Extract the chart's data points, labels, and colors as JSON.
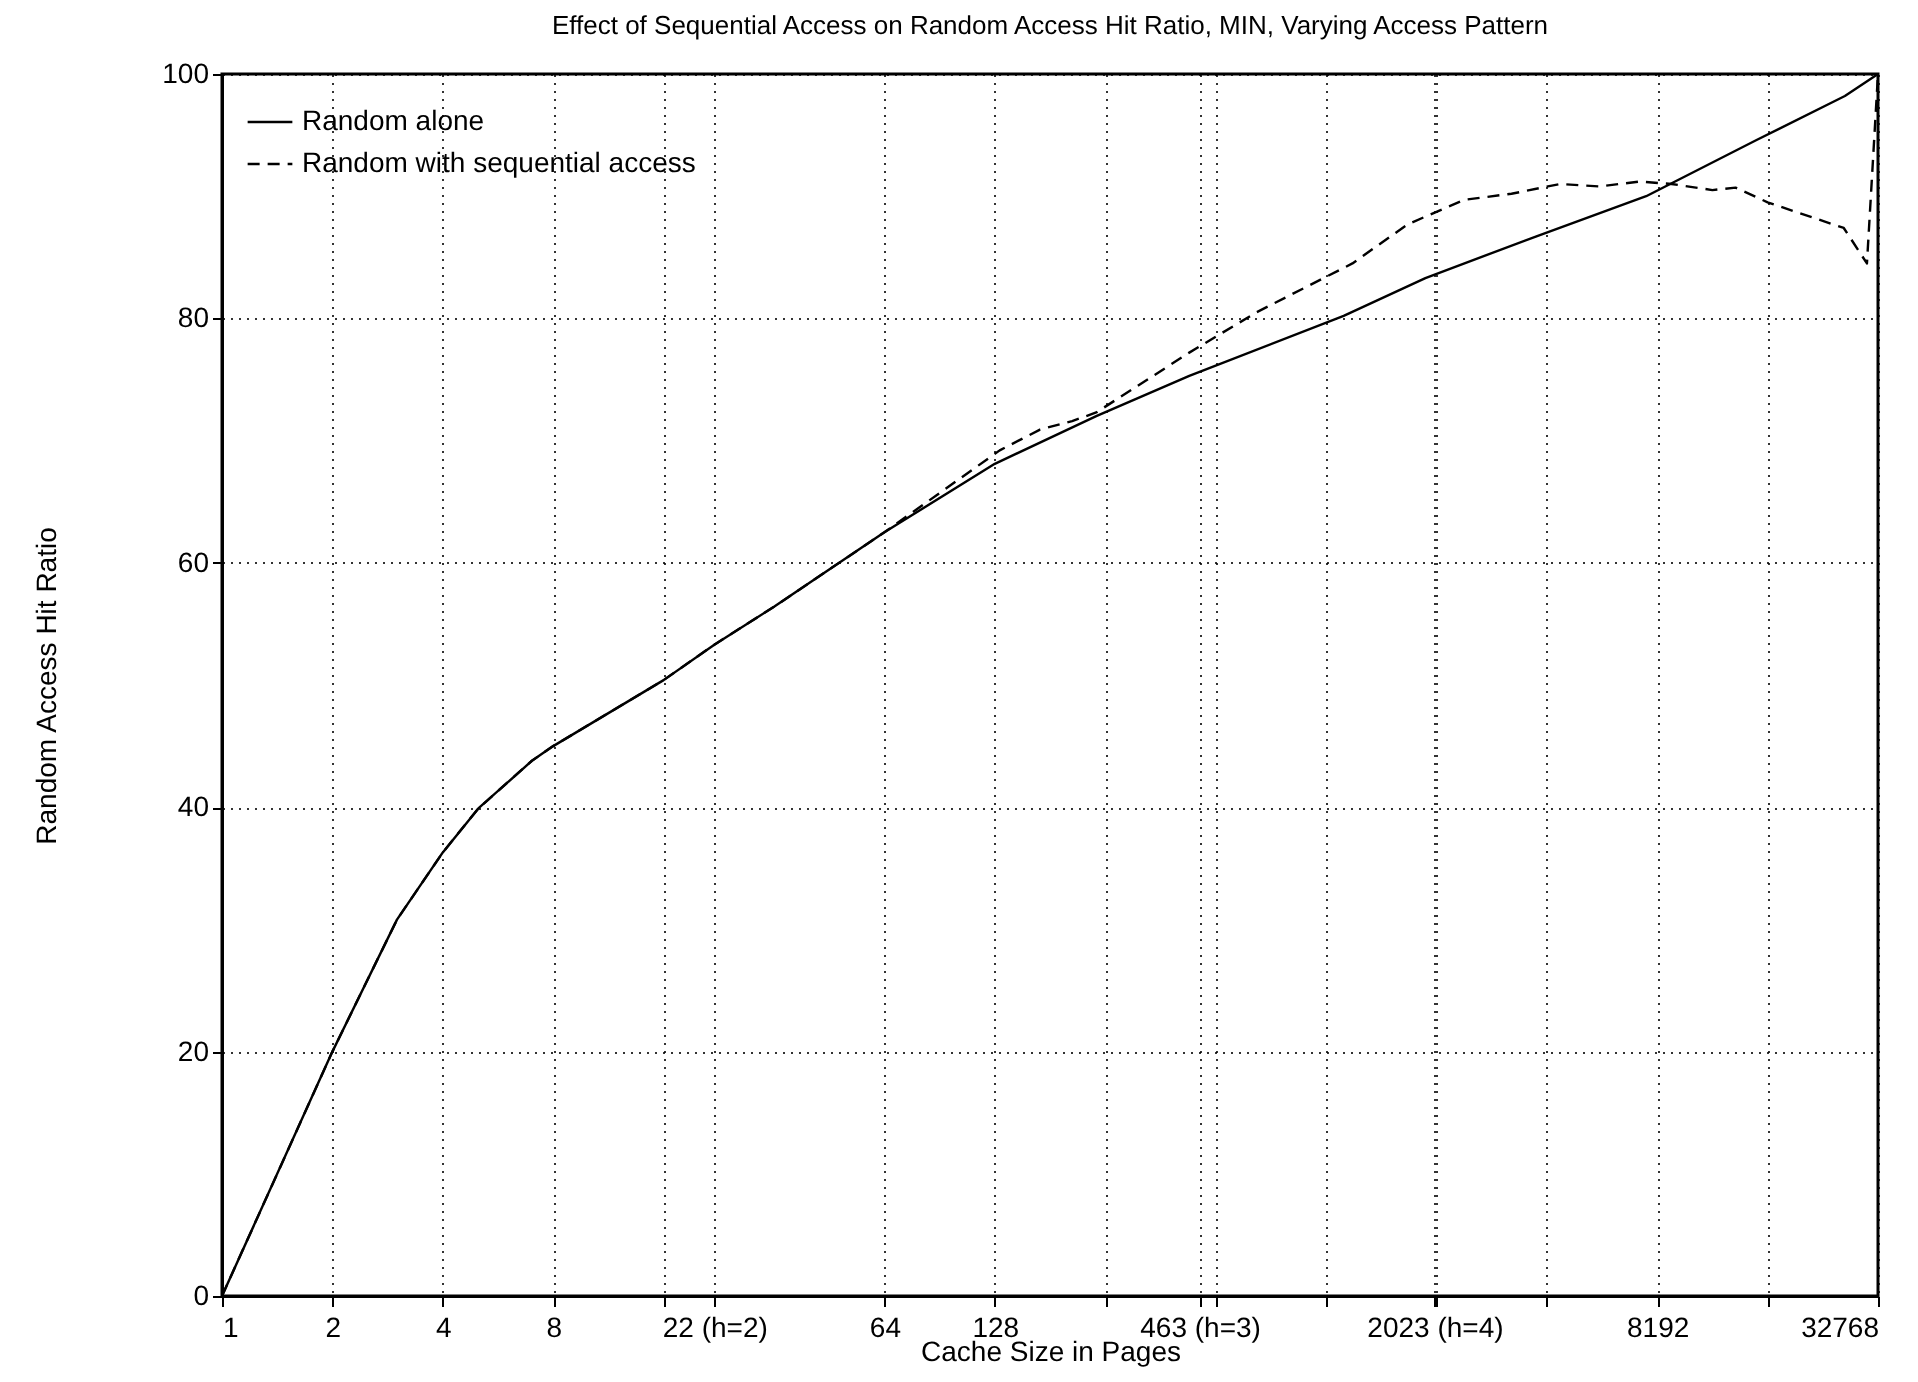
{
  "chart_data": {
    "type": "line",
    "title": "Effect of Sequential Access on Random Access Hit Ratio, MIN, Varying Access Pattern",
    "xlabel": "Cache Size in Pages",
    "ylabel": "Random Access Hit Ratio",
    "log": "x",
    "grid": true,
    "legend": "top left",
    "xlim": [
      1,
      32768
    ],
    "ylim": [
      0,
      100
    ],
    "xticks": [
      1,
      2,
      4,
      8,
      {
        "value": 16,
        "label": null
      },
      {
        "value": 22,
        "label": "22 (h=2)"
      },
      64,
      128,
      {
        "value": 256,
        "label": null
      },
      {
        "value": 463,
        "label": "463 (h=3)"
      },
      {
        "value": 512,
        "label": null
      },
      {
        "value": 1024,
        "label": null
      },
      {
        "value": 2023,
        "label": "2023 (h=4)"
      },
      {
        "value": 2048,
        "label": null
      },
      {
        "value": 4096,
        "label": null
      },
      8192,
      {
        "value": 16384,
        "label": null
      },
      32768
    ],
    "yticks": [
      0,
      20,
      40,
      60,
      80,
      100
    ],
    "series": [
      {
        "name": "Random alone",
        "color": "#000000",
        "line_style": "solid",
        "x": [
          1,
          2,
          3,
          4,
          5,
          7,
          8,
          16,
          22,
          32,
          64,
          128,
          242,
          434,
          1144,
          1911,
          3822,
          7643,
          15287,
          26616,
          32768
        ],
        "values": [
          0,
          20,
          30.8,
          36.3,
          39.9,
          43.8,
          45,
          50.4,
          53.3,
          56.4,
          62.5,
          68.1,
          72,
          75.3,
          80.2,
          83.3,
          86.7,
          90,
          94.6,
          98.2,
          100
        ]
      },
      {
        "name": "Random with sequential access",
        "color": "#000000",
        "line_style": "dashed",
        "x": [
          1,
          2,
          3,
          4,
          5,
          7,
          8,
          16,
          22,
          32,
          64,
          132,
          170,
          208,
          242,
          434,
          662,
          1209,
          1710,
          2435,
          3281,
          4450,
          5712,
          7330,
          8962,
          11585,
          13400,
          16384,
          26430,
          30570,
          32768
        ],
        "values": [
          0,
          20,
          30.8,
          36.3,
          39.9,
          43.8,
          45,
          50.4,
          53.3,
          56.4,
          62.5,
          69.2,
          70.9,
          71.6,
          72.3,
          77.2,
          80.5,
          84.5,
          87.7,
          89.7,
          90.2,
          91,
          90.8,
          91.2,
          91,
          90.5,
          90.7,
          89.5,
          87.4,
          84.5,
          100
        ]
      }
    ]
  }
}
